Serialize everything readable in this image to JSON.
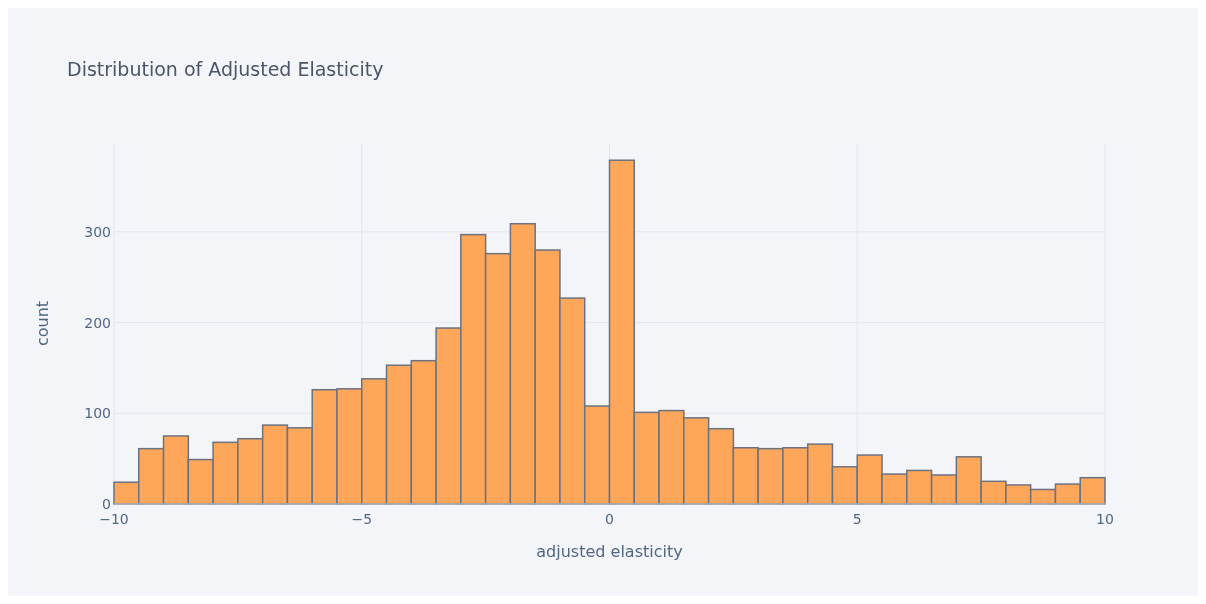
{
  "chart_data": {
    "type": "histogram",
    "title": "Distribution of Adjusted Elasticity",
    "xlabel": "adjusted elasticity",
    "ylabel": "count",
    "bins": [
      -10,
      -9.5,
      -9,
      -8.5,
      -8,
      -7.5,
      -7,
      -6.5,
      -6,
      -5.5,
      -5,
      -4.5,
      -4,
      -3.5,
      -3,
      -2.5,
      -2,
      -1.5,
      -1,
      -0.5,
      0,
      0.5,
      1,
      1.5,
      2,
      2.5,
      3,
      3.5,
      4,
      4.5,
      5,
      5.5,
      6,
      6.5,
      7,
      7.5,
      8,
      8.5,
      9,
      9.5,
      10
    ],
    "values": [
      24,
      61,
      75,
      49,
      68,
      72,
      87,
      84,
      126,
      127,
      138,
      153,
      158,
      194,
      297,
      276,
      309,
      280,
      227,
      108,
      379,
      101,
      103,
      95,
      83,
      62,
      61,
      62,
      66,
      41,
      54,
      33,
      37,
      32,
      52,
      25,
      21,
      16,
      22,
      29
    ],
    "color": "#fea75a",
    "xlim": [
      -10,
      10
    ],
    "xticks": [
      {
        "value": -10,
        "label": "−10"
      },
      {
        "value": -5,
        "label": "−5"
      },
      0,
      5,
      10
    ],
    "ylim": [
      0,
      398
    ],
    "yticks": [
      0,
      100,
      200,
      300
    ],
    "grid": true
  }
}
